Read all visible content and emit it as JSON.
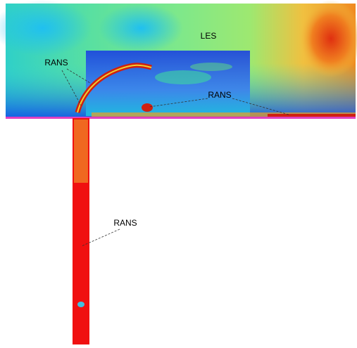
{
  "labels": [
    "LES",
    "RANS",
    "RANS",
    "RANS"
  ]
}
